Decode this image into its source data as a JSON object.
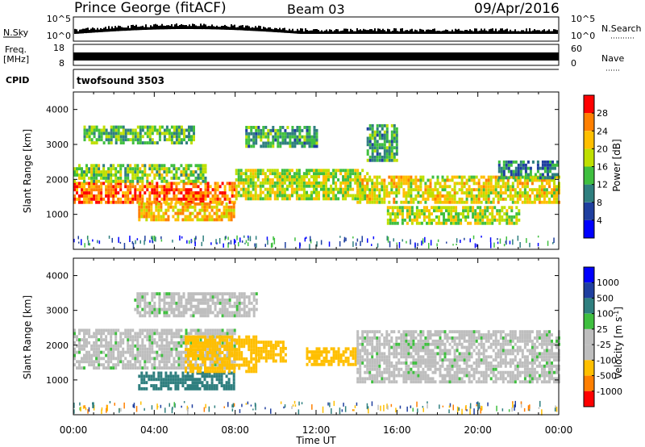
{
  "header": {
    "station": "Prince George (fitACF)",
    "beam": "Beam 03",
    "date": "09/Apr/2016"
  },
  "noise_panel": {
    "left_label": "N.Sky",
    "right_label": "N.Search",
    "left_ticks": [
      "10^5",
      "10^0"
    ],
    "right_ticks": [
      "10^5",
      "10^0"
    ]
  },
  "freq_panel": {
    "left_label_line1": "Freq.",
    "left_label_line2": "[MHz]",
    "left_ticks": [
      "18",
      "8"
    ],
    "right_label": "Nave",
    "right_ticks": [
      "60",
      "0"
    ]
  },
  "cpid_panel": {
    "label": "CPID",
    "program": "twofsound 3503"
  },
  "colors": {
    "power_scale": [
      "#0000ff",
      "#1f3f9f",
      "#2f7f7f",
      "#3fbf3f",
      "#bfdf00",
      "#ffbf00",
      "#ff7f00",
      "#ff0000"
    ],
    "velocity_scale": [
      "#ff0000",
      "#ff7f00",
      "#ffbf00",
      "#bebebe",
      "#bebebe",
      "#3fbf3f",
      "#2f7f7f",
      "#1f3f9f",
      "#0000ff"
    ]
  },
  "chart_data": [
    {
      "type": "heatmap",
      "title": "",
      "xlabel": "",
      "ylabel": "Slant Range [km]",
      "ylim": [
        0,
        4500
      ],
      "xlim": [
        0,
        24
      ],
      "yticks": [
        "1000",
        "2000",
        "3000",
        "4000"
      ],
      "colorbar": {
        "label": "Power [dB]",
        "ticks": [
          "4",
          "8",
          "12",
          "16",
          "20",
          "24",
          "28"
        ],
        "range": [
          0,
          32
        ]
      },
      "bands": [
        {
          "t": [
            0.0,
            8.0
          ],
          "range_km": [
            1300,
            1900
          ],
          "value": 26
        },
        {
          "t": [
            0.0,
            6.5
          ],
          "range_km": [
            1900,
            2400
          ],
          "value": 16
        },
        {
          "t": [
            3.2,
            8.0
          ],
          "range_km": [
            800,
            1300
          ],
          "value": 22
        },
        {
          "t": [
            0.5,
            6.0
          ],
          "range_km": [
            3000,
            3500
          ],
          "value": 14
        },
        {
          "t": [
            8.0,
            14.5
          ],
          "range_km": [
            1400,
            2300
          ],
          "value": 18
        },
        {
          "t": [
            8.5,
            12.0
          ],
          "range_km": [
            2900,
            3500
          ],
          "value": 12
        },
        {
          "t": [
            14.0,
            24.0
          ],
          "range_km": [
            1300,
            2100
          ],
          "value": 20
        },
        {
          "t": [
            15.5,
            22.0
          ],
          "range_km": [
            700,
            1200
          ],
          "value": 18
        },
        {
          "t": [
            14.5,
            16.0
          ],
          "range_km": [
            2500,
            3500
          ],
          "value": 12
        },
        {
          "t": [
            21.0,
            24.0
          ],
          "range_km": [
            2000,
            2500
          ],
          "value": 10
        }
      ]
    },
    {
      "type": "heatmap",
      "title": "",
      "xlabel": "Time UT",
      "ylabel": "Slant Range [km]",
      "ylim": [
        0,
        4500
      ],
      "xlim": [
        0,
        24
      ],
      "yticks": [
        "1000",
        "2000",
        "3000",
        "4000"
      ],
      "xticks": [
        "00:00",
        "04:00",
        "08:00",
        "12:00",
        "16:00",
        "20:00",
        "00:00"
      ],
      "colorbar": {
        "label": "Velocity [m s^-1]",
        "ticks": [
          "-1000",
          "-500",
          "-100",
          "-25",
          "25",
          "100",
          "500",
          "1000"
        ]
      },
      "bands": [
        {
          "t": [
            0.0,
            8.0
          ],
          "range_km": [
            1300,
            2400
          ],
          "value": 0
        },
        {
          "t": [
            3.2,
            8.0
          ],
          "range_km": [
            700,
            1200
          ],
          "value": 150
        },
        {
          "t": [
            5.5,
            9.0
          ],
          "range_km": [
            1200,
            2200
          ],
          "value": -300
        },
        {
          "t": [
            9.0,
            10.5
          ],
          "range_km": [
            1500,
            2100
          ],
          "value": -300
        },
        {
          "t": [
            11.5,
            14.0
          ],
          "range_km": [
            1400,
            1900
          ],
          "value": -200
        },
        {
          "t": [
            14.0,
            24.0
          ],
          "range_km": [
            900,
            2400
          ],
          "value": 0
        },
        {
          "t": [
            3.0,
            9.0
          ],
          "range_km": [
            2800,
            3500
          ],
          "value": 0
        }
      ]
    }
  ]
}
